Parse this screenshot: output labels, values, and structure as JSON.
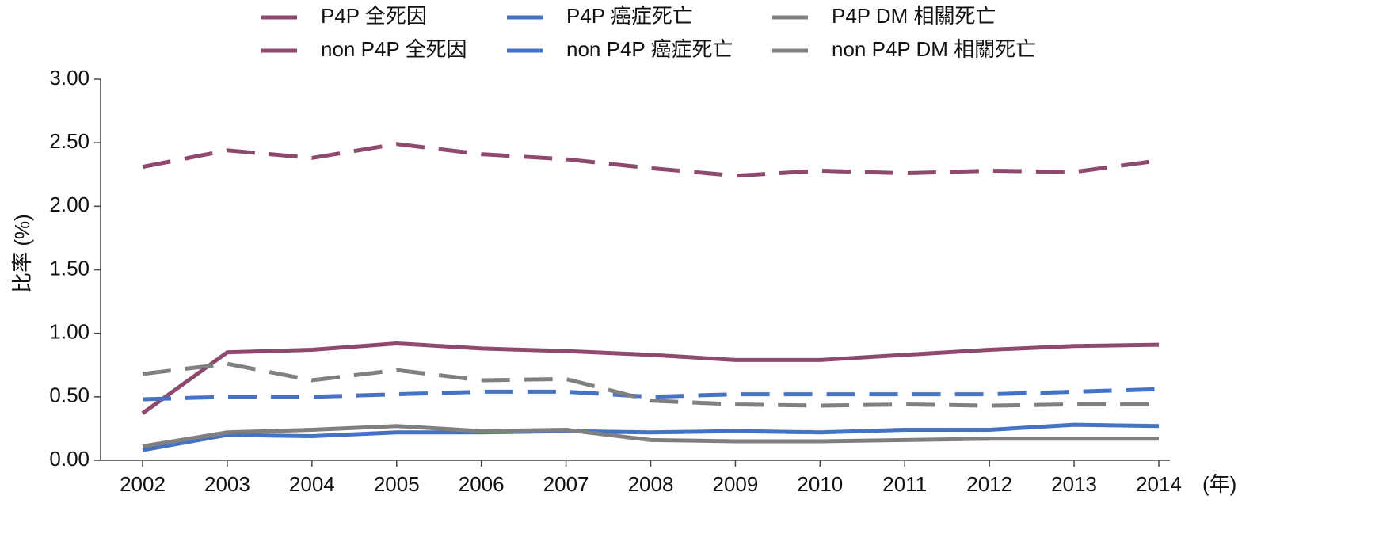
{
  "chart_data": {
    "type": "line",
    "y_label": "比率 (%)",
    "x_label": "(年)",
    "categories": [
      "2002",
      "2003",
      "2004",
      "2005",
      "2006",
      "2007",
      "2008",
      "2009",
      "2010",
      "2011",
      "2012",
      "2013",
      "2014"
    ],
    "series": [
      {
        "name": "P4P 全死因",
        "color": "#8e4a6e",
        "dash": false,
        "values": [
          0.37,
          0.85,
          0.87,
          0.92,
          0.88,
          0.86,
          0.83,
          0.79,
          0.79,
          0.83,
          0.87,
          0.9,
          0.91
        ]
      },
      {
        "name": "non P4P 全死因",
        "color": "#8e4a6e",
        "dash": true,
        "values": [
          2.31,
          2.44,
          2.38,
          2.49,
          2.41,
          2.37,
          2.3,
          2.24,
          2.28,
          2.26,
          2.28,
          2.27,
          2.36
        ]
      },
      {
        "name": "P4P 癌症死亡",
        "color": "#4472c4",
        "dash": false,
        "values": [
          0.08,
          0.2,
          0.19,
          0.22,
          0.22,
          0.23,
          0.22,
          0.23,
          0.22,
          0.24,
          0.24,
          0.28,
          0.27
        ]
      },
      {
        "name": "non P4P 癌症死亡",
        "color": "#4472c4",
        "dash": true,
        "values": [
          0.48,
          0.5,
          0.5,
          0.52,
          0.54,
          0.54,
          0.5,
          0.52,
          0.52,
          0.52,
          0.52,
          0.54,
          0.56
        ]
      },
      {
        "name": "P4P DM 相關死亡",
        "color": "#808080",
        "dash": false,
        "values": [
          0.11,
          0.22,
          0.24,
          0.27,
          0.23,
          0.24,
          0.16,
          0.15,
          0.15,
          0.16,
          0.17,
          0.17,
          0.17
        ]
      },
      {
        "name": "non P4P DM 相關死亡",
        "color": "#808080",
        "dash": true,
        "values": [
          0.68,
          0.76,
          0.63,
          0.71,
          0.63,
          0.64,
          0.47,
          0.44,
          0.43,
          0.44,
          0.43,
          0.44,
          0.44
        ]
      }
    ],
    "ylim": [
      0,
      3
    ],
    "yticks": [
      {
        "value": 0,
        "label": "0.00"
      },
      {
        "value": 0.5,
        "label": "0.50"
      },
      {
        "value": 1,
        "label": "1.00"
      },
      {
        "value": 1.5,
        "label": "1.50"
      },
      {
        "value": 2,
        "label": "2.00"
      },
      {
        "value": 2.5,
        "label": "2.50"
      },
      {
        "value": 3,
        "label": "3.00"
      }
    ],
    "legend": "top"
  }
}
